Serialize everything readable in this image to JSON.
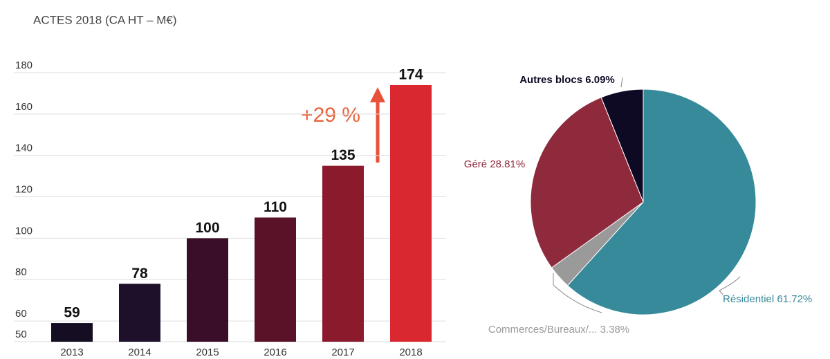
{
  "chart_data": [
    {
      "type": "bar",
      "title": "ACTES 2018  (CA HT – M€)",
      "categories": [
        "2013",
        "2014",
        "2015",
        "2016",
        "2017",
        "2018"
      ],
      "values": [
        59,
        78,
        100,
        110,
        135,
        174
      ],
      "colors": [
        "#150d22",
        "#1e0f2a",
        "#3a0e28",
        "#5a1228",
        "#8a1a2c",
        "#d9282f"
      ],
      "ylim": [
        50,
        180
      ],
      "yticks": [
        50,
        60,
        80,
        100,
        120,
        140,
        160,
        180
      ],
      "grid": true,
      "annotation": "+29 %"
    },
    {
      "type": "pie",
      "categories": [
        "Résidentiel",
        "Commerces/Bureaux/...",
        "Géré",
        "Autres blocs"
      ],
      "values": [
        61.72,
        3.38,
        28.81,
        6.09
      ],
      "value_labels": [
        "61.72%",
        "3.38%",
        "28.81%",
        "6.09%"
      ],
      "colors": [
        "#368a9a",
        "#9a9a9a",
        "#8e2a3c",
        "#0f0a24"
      ]
    }
  ]
}
